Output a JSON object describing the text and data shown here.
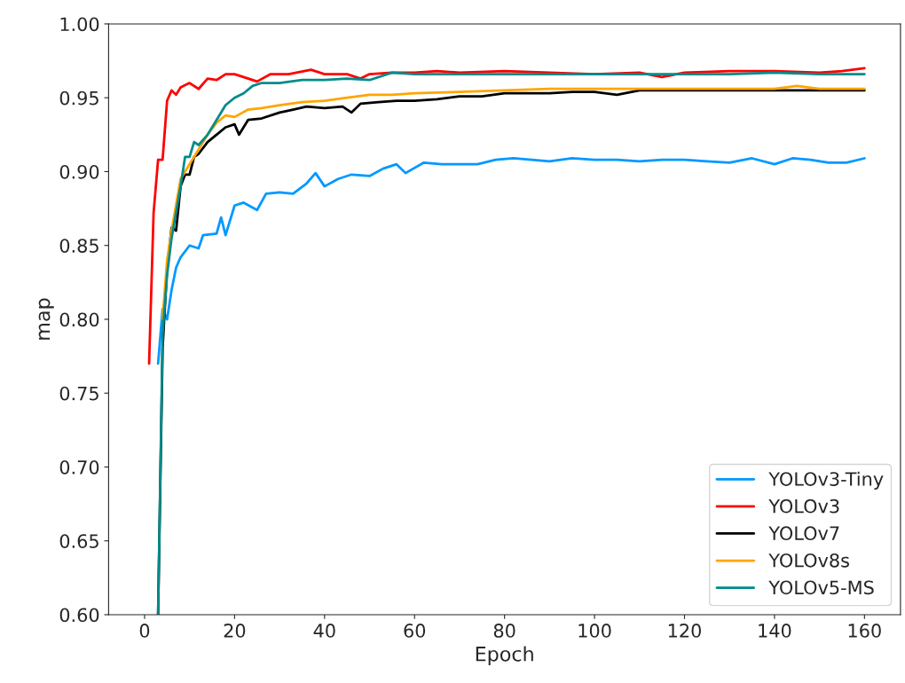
{
  "chart_data": {
    "type": "line",
    "xlabel": "Epoch",
    "ylabel": "map",
    "xlim": [
      -8,
      168
    ],
    "xticks": [
      0,
      20,
      40,
      60,
      80,
      100,
      120,
      140,
      160
    ],
    "ylim": [
      0.6,
      1.0
    ],
    "yticks": [
      {
        "value": 0.6,
        "label": "0.60"
      },
      {
        "value": 0.65,
        "label": "0.65"
      },
      {
        "value": 0.7,
        "label": "0.70"
      },
      {
        "value": 0.75,
        "label": "0.75"
      },
      {
        "value": 0.8,
        "label": "0.80"
      },
      {
        "value": 0.85,
        "label": "0.85"
      },
      {
        "value": 0.9,
        "label": "0.90"
      },
      {
        "value": 0.95,
        "label": "0.95"
      },
      {
        "value": 1.0,
        "label": "1.00"
      }
    ],
    "grid": false,
    "legend": "bottom right",
    "line_style": "solid",
    "series": [
      {
        "name": "YOLOv3-Tiny",
        "color": "#0099ff",
        "x": [
          3,
          4,
          5,
          6,
          7,
          8,
          10,
          12,
          13,
          16,
          17,
          18,
          20,
          22,
          25,
          27,
          30,
          33,
          36,
          38,
          40,
          43,
          46,
          50,
          53,
          56,
          58,
          62,
          66,
          70,
          74,
          78,
          82,
          86,
          90,
          95,
          100,
          105,
          110,
          115,
          120,
          125,
          130,
          135,
          140,
          144,
          148,
          152,
          156,
          160
        ],
        "values": [
          0.77,
          0.807,
          0.8,
          0.82,
          0.835,
          0.842,
          0.85,
          0.848,
          0.857,
          0.858,
          0.869,
          0.857,
          0.877,
          0.879,
          0.874,
          0.885,
          0.886,
          0.885,
          0.892,
          0.899,
          0.89,
          0.895,
          0.898,
          0.897,
          0.902,
          0.905,
          0.899,
          0.906,
          0.905,
          0.905,
          0.905,
          0.908,
          0.909,
          0.908,
          0.907,
          0.909,
          0.908,
          0.908,
          0.907,
          0.908,
          0.908,
          0.907,
          0.906,
          0.909,
          0.905,
          0.909,
          0.908,
          0.906,
          0.906,
          0.909
        ]
      },
      {
        "name": "YOLOv3",
        "color": "#ff0000",
        "x": [
          1,
          2,
          3,
          4,
          5,
          6,
          7,
          8,
          10,
          12,
          14,
          16,
          18,
          20,
          22,
          25,
          28,
          32,
          37,
          40,
          45,
          48,
          50,
          55,
          60,
          65,
          70,
          80,
          90,
          100,
          110,
          115,
          120,
          130,
          140,
          150,
          155,
          160
        ],
        "values": [
          0.77,
          0.872,
          0.908,
          0.908,
          0.948,
          0.955,
          0.952,
          0.957,
          0.96,
          0.956,
          0.963,
          0.962,
          0.966,
          0.966,
          0.964,
          0.961,
          0.966,
          0.966,
          0.969,
          0.966,
          0.966,
          0.963,
          0.966,
          0.967,
          0.967,
          0.968,
          0.967,
          0.968,
          0.967,
          0.966,
          0.967,
          0.964,
          0.967,
          0.968,
          0.968,
          0.967,
          0.968,
          0.97
        ]
      },
      {
        "name": "YOLOv7",
        "color": "#000000",
        "x": [
          3,
          4,
          5,
          6,
          7,
          8,
          9,
          10,
          11,
          12,
          14,
          16,
          18,
          20,
          21,
          23,
          26,
          30,
          33,
          36,
          40,
          44,
          46,
          48,
          52,
          56,
          60,
          65,
          70,
          75,
          80,
          90,
          95,
          100,
          105,
          110,
          120,
          130,
          140,
          150,
          160
        ],
        "values": [
          0.6,
          0.78,
          0.835,
          0.862,
          0.86,
          0.89,
          0.898,
          0.898,
          0.91,
          0.912,
          0.92,
          0.925,
          0.93,
          0.932,
          0.925,
          0.935,
          0.936,
          0.94,
          0.942,
          0.944,
          0.943,
          0.944,
          0.94,
          0.946,
          0.947,
          0.948,
          0.948,
          0.949,
          0.951,
          0.951,
          0.953,
          0.953,
          0.954,
          0.954,
          0.952,
          0.955,
          0.955,
          0.955,
          0.955,
          0.955,
          0.955
        ]
      },
      {
        "name": "YOLOv8s",
        "color": "#ffa500",
        "x": [
          4,
          5,
          6,
          8,
          10,
          12,
          14,
          16,
          18,
          20,
          23,
          26,
          30,
          35,
          40,
          45,
          50,
          55,
          60,
          70,
          80,
          90,
          100,
          110,
          120,
          130,
          140,
          145,
          150,
          160
        ],
        "values": [
          0.8,
          0.84,
          0.86,
          0.895,
          0.905,
          0.915,
          0.925,
          0.933,
          0.938,
          0.937,
          0.942,
          0.943,
          0.945,
          0.947,
          0.948,
          0.95,
          0.952,
          0.952,
          0.953,
          0.954,
          0.955,
          0.956,
          0.956,
          0.956,
          0.956,
          0.956,
          0.956,
          0.958,
          0.956,
          0.956
        ]
      },
      {
        "name": "YOLOv5-MS",
        "color": "#008b8b",
        "x": [
          3,
          4,
          5,
          6,
          8,
          9,
          10,
          11,
          12,
          14,
          16,
          18,
          20,
          22,
          24,
          26,
          30,
          35,
          40,
          45,
          50,
          55,
          60,
          70,
          80,
          90,
          100,
          110,
          120,
          130,
          140,
          150,
          160
        ],
        "values": [
          0.6,
          0.79,
          0.83,
          0.855,
          0.89,
          0.91,
          0.91,
          0.92,
          0.918,
          0.925,
          0.935,
          0.945,
          0.95,
          0.953,
          0.958,
          0.96,
          0.96,
          0.962,
          0.962,
          0.963,
          0.962,
          0.967,
          0.966,
          0.966,
          0.966,
          0.966,
          0.966,
          0.966,
          0.966,
          0.966,
          0.967,
          0.966,
          0.966
        ]
      }
    ]
  }
}
